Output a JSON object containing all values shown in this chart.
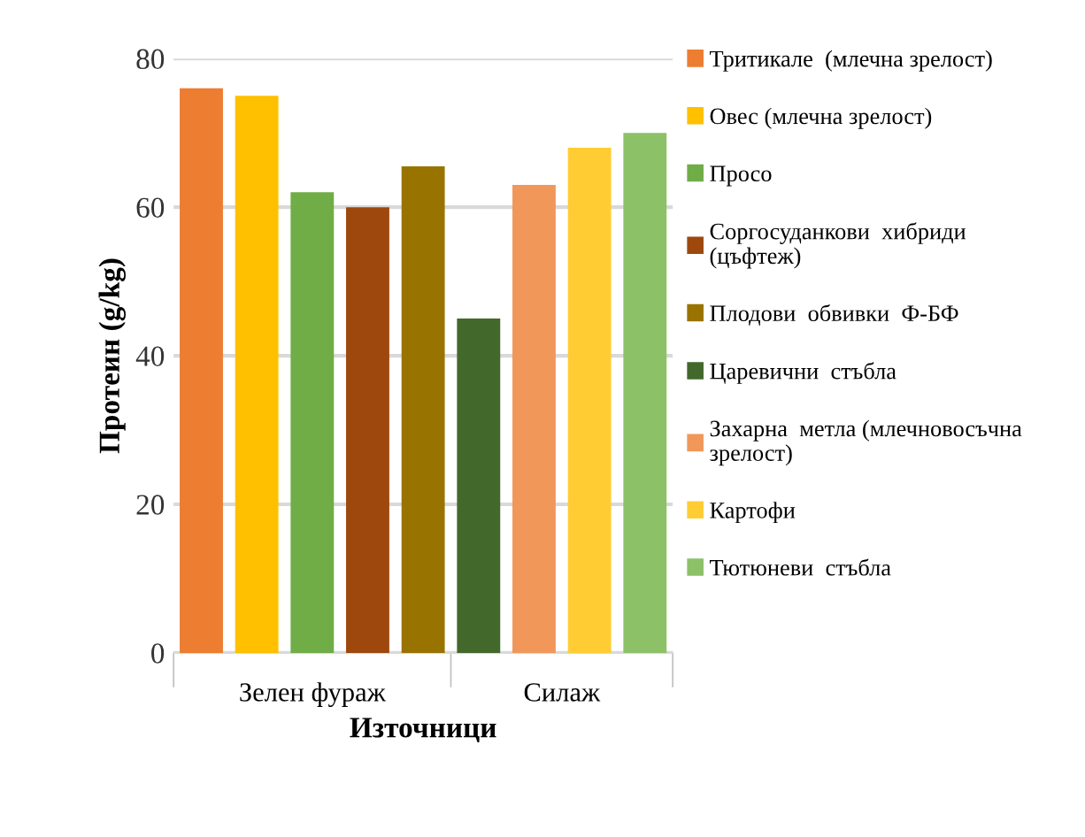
{
  "chart_data": {
    "type": "bar",
    "xlabel": "Източници",
    "ylabel": "Протеин (g/kg)",
    "categories": [
      "Зелен фураж",
      "Силаж"
    ],
    "series": [
      {
        "name": "Тритикале  (млечна зрелост)",
        "color": "#ed7d31",
        "values": [
          76,
          null
        ]
      },
      {
        "name": "Овес (млечна зрелост)",
        "color": "#ffc000",
        "values": [
          75,
          null
        ]
      },
      {
        "name": "Просо",
        "color": "#70ad47",
        "values": [
          62,
          null
        ]
      },
      {
        "name": "Соргосуданкови  хибриди\n(цъфтеж)",
        "color": "#9e480e",
        "values": [
          60,
          null
        ]
      },
      {
        "name": "Плодови  обвивки  Ф-БФ",
        "color": "#997300",
        "values": [
          65.5,
          null
        ]
      },
      {
        "name": "Царевични  стъбла",
        "color": "#43682b",
        "values": [
          null,
          45
        ]
      },
      {
        "name": "Захарна  метла (млечновосъчна\nзрелост)",
        "color": "#f1975a",
        "values": [
          null,
          63
        ]
      },
      {
        "name": "Картофи",
        "color": "#ffcd33",
        "values": [
          null,
          68
        ]
      },
      {
        "name": "Тютюневи  стъбла",
        "color": "#8cc168",
        "values": [
          null,
          70
        ]
      }
    ],
    "ylim": [
      0,
      80
    ],
    "yticks": [
      0,
      20,
      40,
      60,
      80
    ],
    "grid": "y",
    "legend": "right"
  }
}
